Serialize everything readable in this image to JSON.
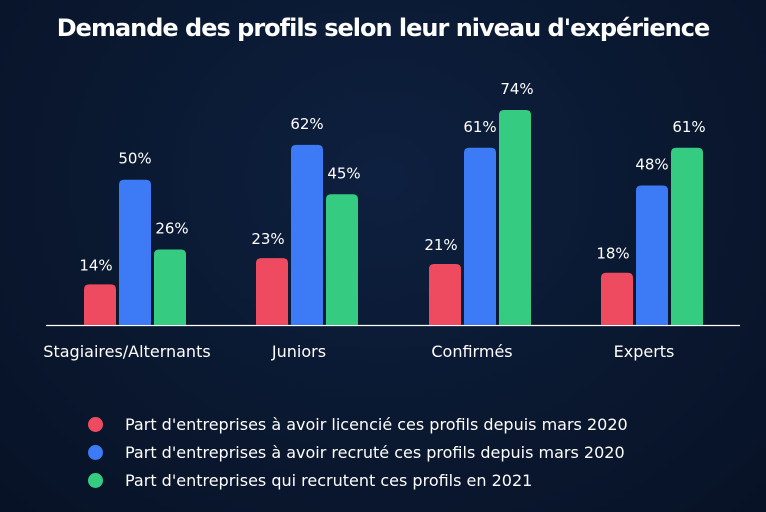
{
  "chart_data": {
    "type": "bar",
    "title": "Demande des profils selon leur niveau d'expérience",
    "categories": [
      "Stagiaires/Alternants",
      "Juniors",
      "Confirmés",
      "Experts"
    ],
    "series": [
      {
        "name": "Part d'entreprises à avoir licencié ces profils depuis mars 2020",
        "values": [
          14,
          23,
          21,
          18
        ],
        "labels": [
          "14%",
          "23%",
          "21%",
          "18%"
        ],
        "color": "#ef4b60"
      },
      {
        "name": "Part d'entreprises à avoir recruté ces profils depuis mars 2020",
        "values": [
          50,
          62,
          61,
          48
        ],
        "labels": [
          "50%",
          "62%",
          "61%",
          "48%"
        ],
        "color": "#3d7af5"
      },
      {
        "name": "Part d'entreprises qui recrutent ces profils en 2021",
        "values": [
          26,
          45,
          74,
          61
        ],
        "labels": [
          "26%",
          "45%",
          "74%",
          "61%"
        ],
        "color": "#35cc82"
      }
    ],
    "ylim": [
      0,
      74
    ],
    "grid": false,
    "legend_position": "bottom"
  }
}
